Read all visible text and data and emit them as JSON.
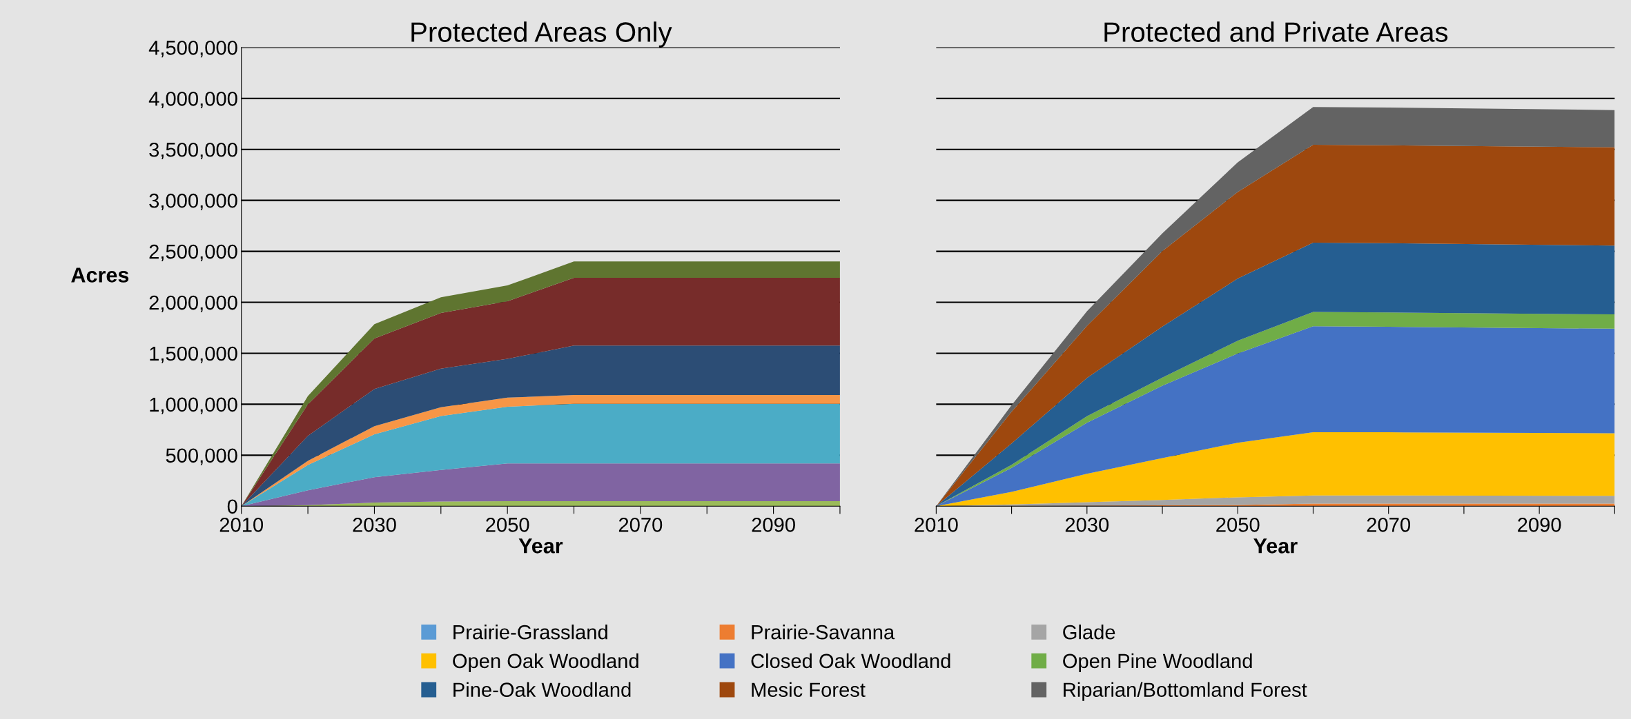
{
  "chart_data": [
    {
      "type": "area",
      "stacked": true,
      "title": "Protected Areas Only",
      "xlabel": "Year",
      "ylabel": "Acres",
      "x": [
        2010,
        2020,
        2030,
        2040,
        2050,
        2060,
        2100
      ],
      "series": [
        {
          "color": "#9bbb59",
          "values": [
            0,
            10000,
            35000,
            45000,
            50000,
            50000,
            50000
          ]
        },
        {
          "color": "#8064a2",
          "values": [
            0,
            145000,
            250000,
            310000,
            370000,
            370000,
            370000
          ]
        },
        {
          "color": "#4bacc6",
          "values": [
            0,
            250000,
            420000,
            530000,
            555000,
            585000,
            585000
          ]
        },
        {
          "color": "#f79646",
          "values": [
            0,
            40000,
            80000,
            85000,
            90000,
            85000,
            85000
          ]
        },
        {
          "color": "#2c4d75",
          "values": [
            0,
            245000,
            365000,
            380000,
            380000,
            485000,
            485000
          ]
        },
        {
          "color": "#772c2a",
          "values": [
            0,
            310000,
            495000,
            545000,
            565000,
            665000,
            665000
          ]
        },
        {
          "color": "#5f7530",
          "values": [
            0,
            80000,
            140000,
            155000,
            155000,
            160000,
            160000
          ]
        }
      ],
      "xlim": [
        2010,
        2100
      ],
      "xticks": [
        2010,
        {
          "value": 2020,
          "label": null
        },
        2030,
        {
          "value": 2040,
          "label": null
        },
        2050,
        {
          "value": 2060,
          "label": null
        },
        2070,
        {
          "value": 2080,
          "label": null
        },
        2090,
        {
          "value": 2100,
          "label": null
        }
      ],
      "ylim": [
        0,
        4500000
      ],
      "yticks": [
        {
          "value": 0,
          "label": "0"
        },
        {
          "value": 500000,
          "label": "500,000"
        },
        {
          "value": 1000000,
          "label": "1,000,000"
        },
        {
          "value": 1500000,
          "label": "1,500,000"
        },
        {
          "value": 2000000,
          "label": "2,000,000"
        },
        {
          "value": 2500000,
          "label": "2,500,000"
        },
        {
          "value": 3000000,
          "label": "3,000,000"
        },
        {
          "value": 3500000,
          "label": "3,500,000"
        },
        {
          "value": 4000000,
          "label": "4,000,000"
        },
        {
          "value": 4500000,
          "label": "4,500,000"
        }
      ],
      "grid": "y"
    },
    {
      "type": "area",
      "stacked": true,
      "title": "Protected and Private Areas",
      "xlabel": "Year",
      "x": [
        2010,
        2020,
        2030,
        2040,
        2050,
        2060,
        2070,
        2100
      ],
      "series": [
        {
          "name": "Prairie-Grassland",
          "color": "#5b9bd5",
          "values": [
            null,
            null,
            null,
            null,
            null,
            null,
            null,
            null
          ]
        },
        {
          "name": "Prairie-Savanna",
          "color": "#ed7d31",
          "values": [
            0,
            2000,
            5000,
            8000,
            12000,
            25000,
            25000,
            25000
          ]
        },
        {
          "name": "Glade",
          "color": "#a5a5a5",
          "values": [
            0,
            15000,
            34000,
            53000,
            75000,
            80000,
            80000,
            76000
          ]
        },
        {
          "name": "Open Oak Woodland",
          "color": "#ffc000",
          "values": [
            0,
            124000,
            279000,
            411000,
            536000,
            620000,
            620000,
            615000
          ]
        },
        {
          "name": "Closed Oak Woodland",
          "color": "#4472c4",
          "values": [
            0,
            235000,
            500000,
            710000,
            875000,
            1040000,
            1035000,
            1025000
          ]
        },
        {
          "name": "Open Pine Woodland",
          "color": "#70ad47",
          "values": [
            0,
            30000,
            65000,
            80000,
            125000,
            140000,
            140000,
            140000
          ]
        },
        {
          "name": "Pine-Oak Woodland",
          "color": "#255e91",
          "values": [
            0,
            210000,
            375000,
            500000,
            610000,
            680000,
            680000,
            675000
          ]
        },
        {
          "name": "Mesic Forest",
          "color": "#9e480e",
          "values": [
            0,
            310000,
            510000,
            740000,
            850000,
            960000,
            960000,
            965000
          ]
        },
        {
          "name": "Riparian/Bottomland Forest",
          "color": "#636363",
          "values": [
            0,
            65000,
            145000,
            175000,
            290000,
            370000,
            370000,
            365000
          ]
        }
      ],
      "xlim": [
        2010,
        2100
      ],
      "xticks": [
        2010,
        {
          "value": 2020,
          "label": null
        },
        2030,
        {
          "value": 2040,
          "label": null
        },
        2050,
        {
          "value": 2060,
          "label": null
        },
        2070,
        {
          "value": 2080,
          "label": null
        },
        2090,
        {
          "value": 2100,
          "label": null
        }
      ],
      "ylim": [
        0,
        4500000
      ],
      "yticks": [
        0,
        500000,
        1000000,
        1500000,
        2000000,
        2500000,
        3000000,
        3500000,
        4000000,
        4500000
      ],
      "tick_labels": "x",
      "grid": "y",
      "legend": "bottom"
    }
  ]
}
